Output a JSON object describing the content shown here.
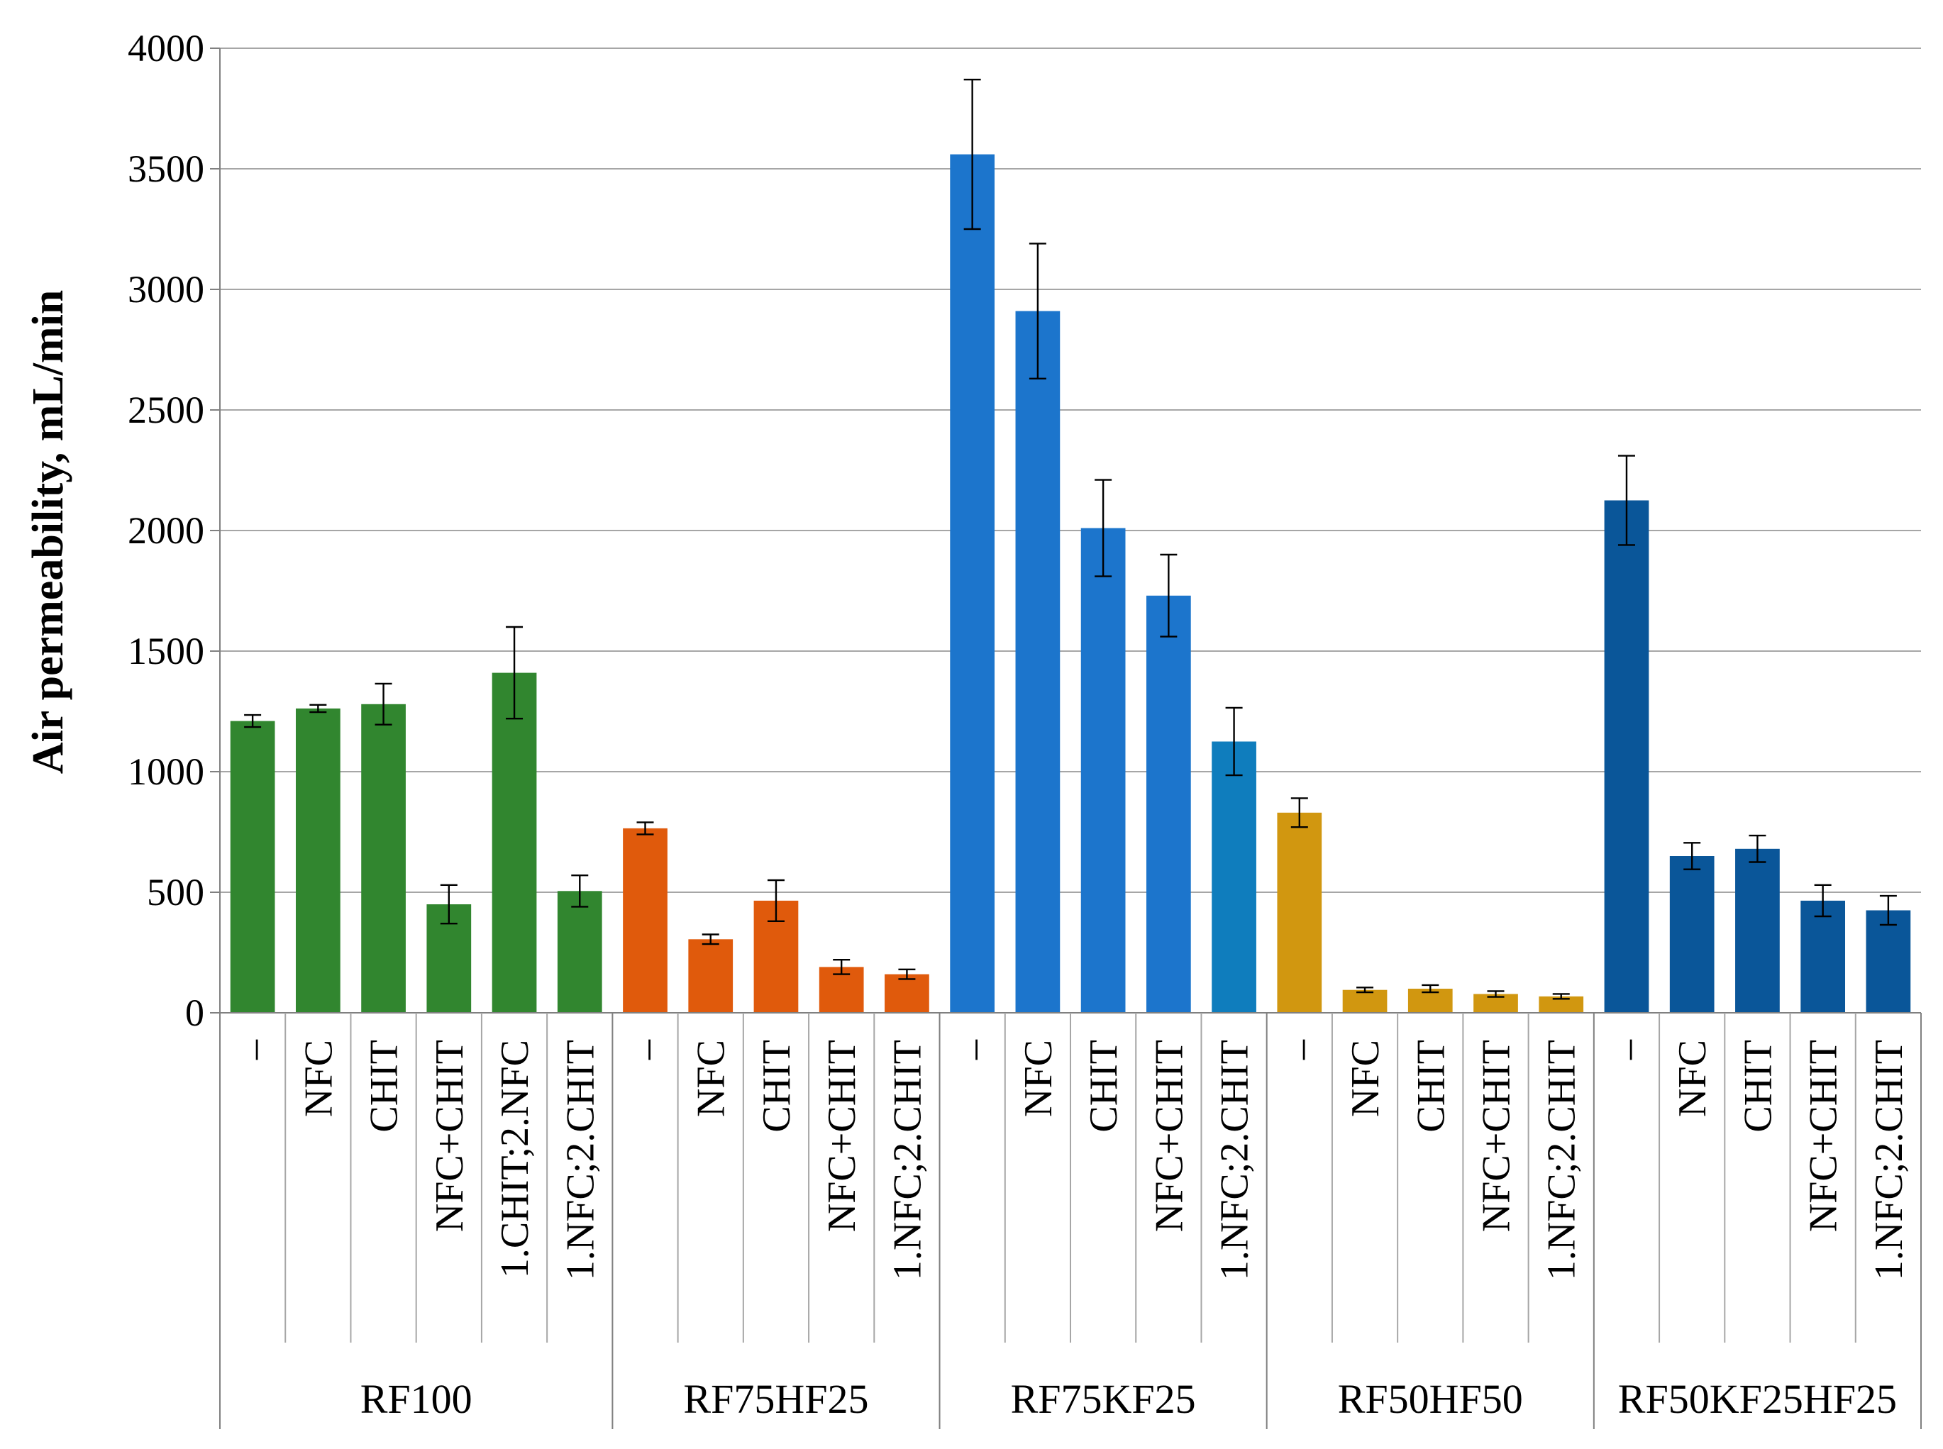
{
  "chart_data": {
    "type": "bar",
    "ylabel": "Air permeability, mL/min",
    "ylim": [
      0,
      4000
    ],
    "yticks": [
      0,
      500,
      1000,
      1500,
      2000,
      2500,
      3000,
      3500,
      4000
    ],
    "grid": true,
    "groups": [
      {
        "name": "RF100",
        "color": "#31862f",
        "categories": [
          "–",
          "NFC",
          "CHIT",
          "NFC+CHIT",
          "1.CHIT;2.NFC",
          "1.NFC;2.CHIT"
        ],
        "values": [
          1210,
          1262,
          1280,
          450,
          1410,
          505
        ],
        "errors": [
          25,
          15,
          85,
          80,
          190,
          65
        ]
      },
      {
        "name": "RF75HF25",
        "color": "#e05a0c",
        "categories": [
          "–",
          "NFC",
          "CHIT",
          "NFC+CHIT",
          "1.NFC;2.CHIT"
        ],
        "values": [
          765,
          305,
          465,
          190,
          160
        ],
        "errors": [
          25,
          20,
          85,
          30,
          20
        ]
      },
      {
        "name": "RF75KF25",
        "color": "#1c75cc",
        "categories": [
          "–",
          "NFC",
          "CHIT",
          "NFC+CHIT",
          "1.NFC;2.CHIT"
        ],
        "values": [
          3560,
          2910,
          2010,
          1730,
          1125
        ],
        "errors": [
          310,
          280,
          200,
          170,
          140
        ],
        "colors": [
          "#1c75cc",
          "#1c75cc",
          "#1c75cc",
          "#1c75cc",
          "#0f7dbd"
        ]
      },
      {
        "name": "RF50HF50",
        "color": "#d19710",
        "categories": [
          "–",
          "NFC",
          "CHIT",
          "NFC+CHIT",
          "1.NFC;2.CHIT"
        ],
        "values": [
          830,
          95,
          100,
          78,
          68
        ],
        "errors": [
          60,
          10,
          15,
          12,
          10
        ]
      },
      {
        "name": "RF50KF25HF25",
        "color": "#0a5699",
        "categories": [
          "–",
          "NFC",
          "CHIT",
          "NFC+CHIT",
          "1.NFC;2.CHIT"
        ],
        "values": [
          2125,
          650,
          680,
          465,
          425
        ],
        "errors": [
          185,
          55,
          55,
          65,
          60
        ]
      }
    ]
  }
}
